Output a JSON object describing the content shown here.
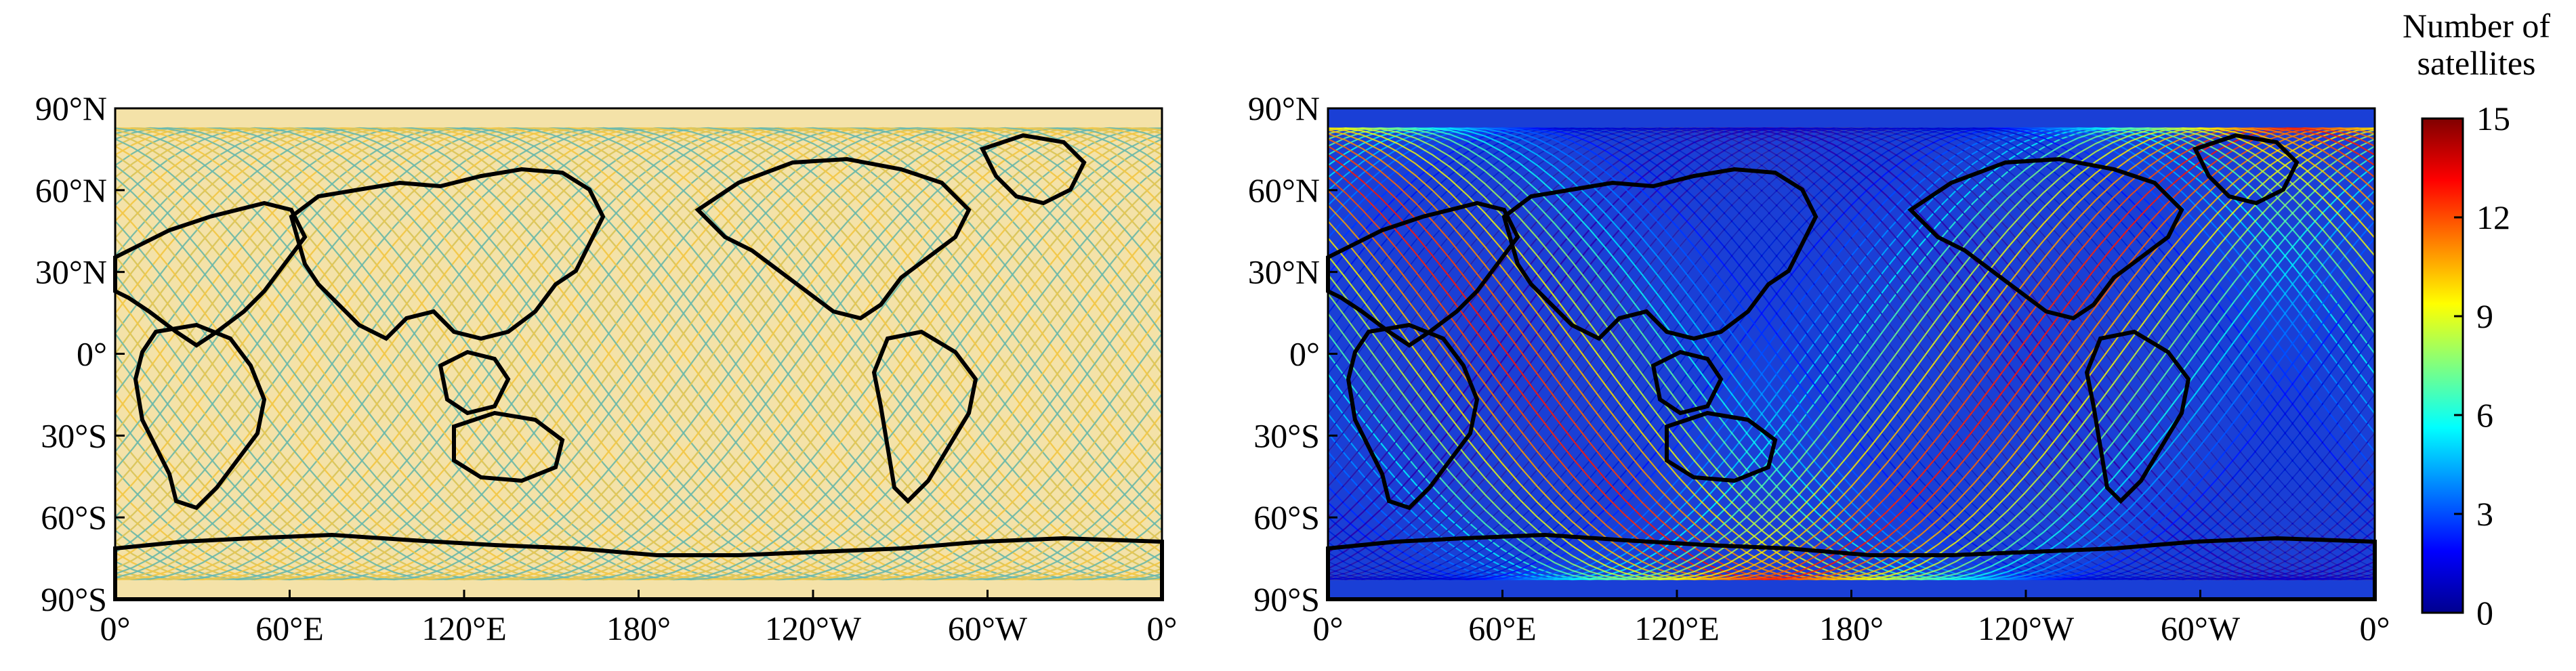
{
  "maps": [
    {
      "id": "left",
      "y_ticks": [
        "90°N",
        "60°N",
        "30°N",
        "0°",
        "30°S",
        "60°S",
        "90°S"
      ],
      "x_ticks": [
        "0°",
        "60°E",
        "120°E",
        "180°",
        "120°W",
        "60°W",
        "0°"
      ],
      "track_color_low": "#3cb4d2",
      "track_color_high": "#f2c84a",
      "density_mode": "uniform"
    },
    {
      "id": "right",
      "y_ticks": [
        "90°N",
        "60°N",
        "30°N",
        "0°",
        "30°S",
        "60°S",
        "90°S"
      ],
      "x_ticks": [
        "0°",
        "60°E",
        "120°E",
        "180°",
        "120°W",
        "60°W",
        "0°"
      ],
      "density_mode": "regional",
      "peak_longitude_deg": 120
    }
  ],
  "colorbar": {
    "title_line1": "Number of",
    "title_line2": "satellites",
    "ticks": [
      "15",
      "12",
      "9",
      "6",
      "3",
      "0"
    ],
    "min": 0,
    "max": 15,
    "colormap": "jet"
  },
  "coastline_color": "#000000"
}
